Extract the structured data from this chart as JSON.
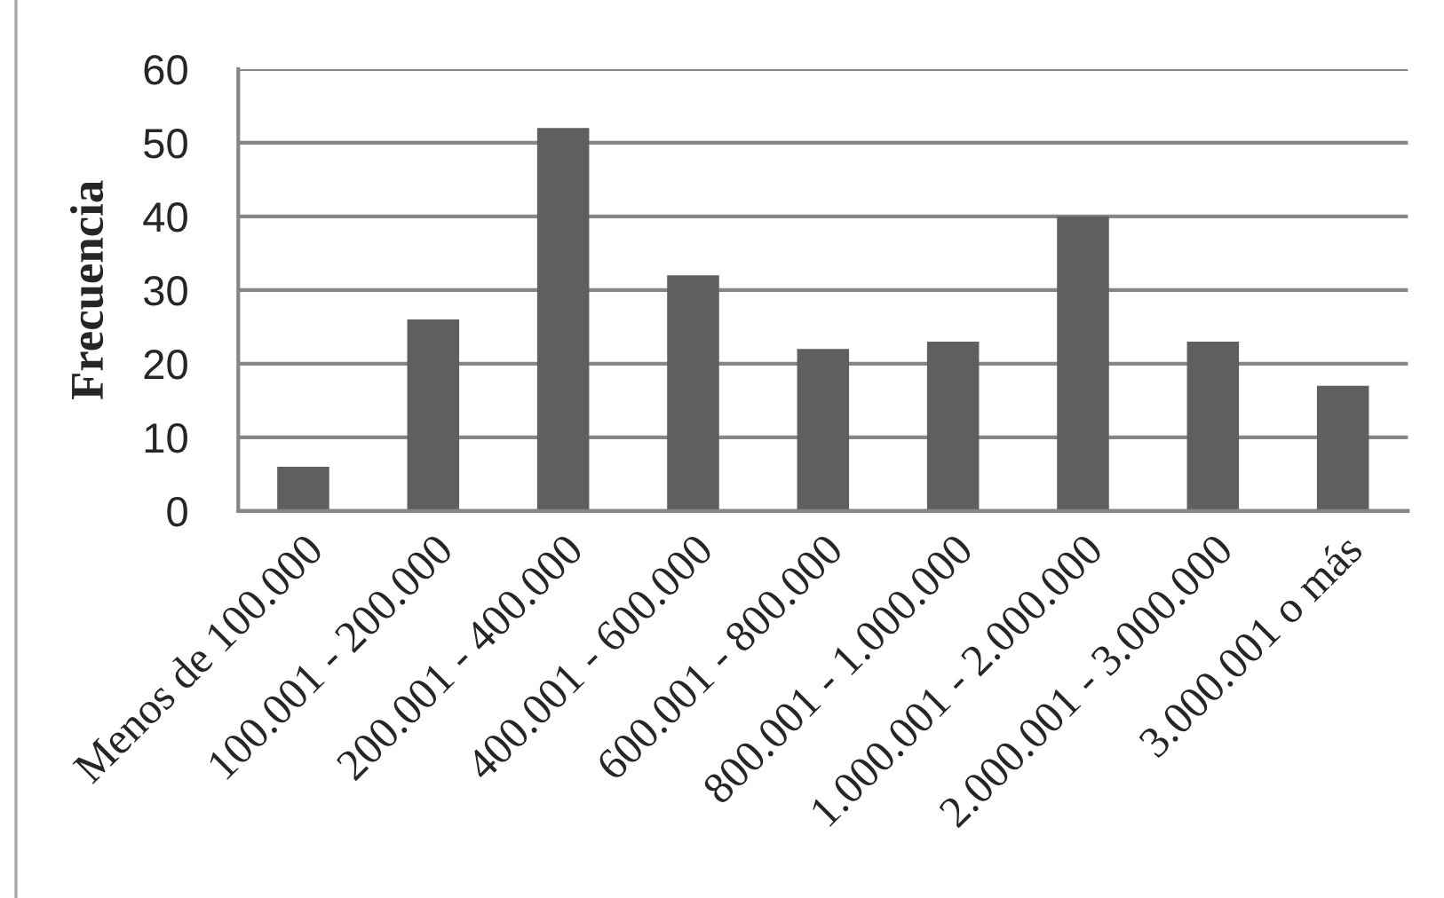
{
  "chart_data": {
    "type": "bar",
    "ylabel": "Frecuencia",
    "categories": [
      "Menos de 100.000",
      "100.001 - 200.000",
      "200.001 - 400.000",
      "400.001 - 600.000",
      "600.001 - 800.000",
      "800.001 - 1.000.000",
      "1.000.001 - 2.000.000",
      "2.000.001 - 3.000.000",
      "3.000.001 o más"
    ],
    "values": [
      6,
      26,
      52,
      32,
      22,
      23,
      40,
      23,
      17
    ],
    "color": "#5f5f5f",
    "ylim": [
      0,
      60
    ],
    "yticks": [
      0,
      10,
      20,
      30,
      40,
      50,
      60
    ],
    "grid": "y"
  }
}
